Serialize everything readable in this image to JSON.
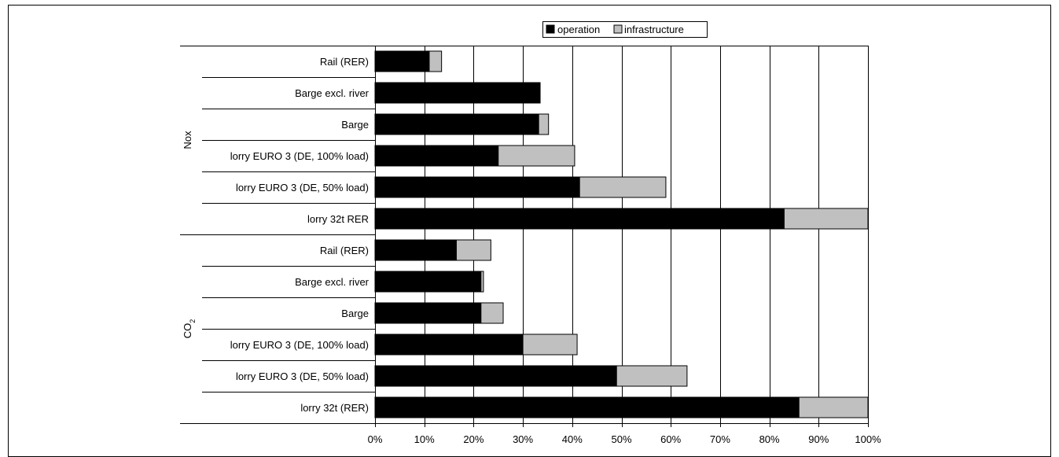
{
  "chart_data": {
    "type": "bar",
    "orientation": "horizontal",
    "stacked": true,
    "title": "",
    "xlabel": "",
    "ylabel": "",
    "xlim": [
      0,
      100
    ],
    "x_ticks": [
      "0%",
      "10%",
      "20%",
      "30%",
      "40%",
      "50%",
      "60%",
      "70%",
      "80%",
      "90%",
      "100%"
    ],
    "grid": "vertical",
    "legend": {
      "position": "top",
      "entries": [
        {
          "name": "operation",
          "color": "#000000"
        },
        {
          "name": "infrastructure",
          "color": "#c0c0c0"
        }
      ]
    },
    "groups": [
      {
        "name": "Nox",
        "categories": [
          "Rail (RER)",
          "Barge excl. river",
          "Barge",
          "lorry EURO 3 (DE, 100% load)",
          "lorry EURO 3 (DE, 50% load)",
          "lorry 32t RER"
        ],
        "series": [
          {
            "name": "operation",
            "values": [
              11,
              33.5,
              33.2,
              25,
              41.5,
              83
            ]
          },
          {
            "name": "infrastructure",
            "values": [
              2.5,
              0,
              2,
              15.5,
              17.5,
              17
            ]
          }
        ]
      },
      {
        "name": "CO2",
        "name_base": "CO",
        "name_subscript": "2",
        "categories": [
          "Rail (RER)",
          "Barge excl. river",
          "Barge",
          "lorry EURO 3 (DE, 100% load)",
          "lorry EURO 3 (DE, 50% load)",
          "lorry 32t (RER)"
        ],
        "series": [
          {
            "name": "operation",
            "values": [
              16.5,
              21.5,
              21.5,
              30,
              49,
              86
            ]
          },
          {
            "name": "infrastructure",
            "values": [
              7,
              0.5,
              4.5,
              11,
              14.3,
              14
            ]
          }
        ]
      }
    ]
  }
}
